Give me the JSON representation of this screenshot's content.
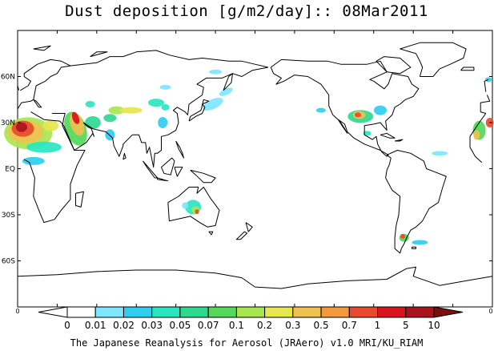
{
  "title": "Dust deposition [g/m2/day]:: 08Mar2011",
  "map": {
    "lat_labels": [
      "60N",
      "30N",
      "EQ",
      "30S",
      "60S"
    ],
    "lat_values": [
      60,
      30,
      0,
      -30,
      -60
    ],
    "lon_range": [
      0,
      360
    ],
    "lat_range": [
      -90,
      90
    ],
    "background": "#ffffff",
    "coast_color": "#000000",
    "edge_left_label": "0",
    "edge_right_label": "0"
  },
  "colorbar": {
    "labels": [
      "0",
      "0.01",
      "0.02",
      "0.03",
      "0.05",
      "0.07",
      "0.1",
      "0.2",
      "0.3",
      "0.5",
      "0.7",
      "1",
      "5",
      "10"
    ],
    "colors": [
      "#ffffff",
      "#ffffff",
      "#7ee6ff",
      "#30cdf0",
      "#29e6c0",
      "#2fd88f",
      "#53d85a",
      "#a8e64f",
      "#e6e64f",
      "#f0c14f",
      "#f59a3c",
      "#e84a2e",
      "#d8141e",
      "#a8141e",
      "#7a0f0f"
    ]
  },
  "footer": "The Japanese Reanalysis for Aerosol (JRAero) v1.0 MRI/KU_RIAM"
}
